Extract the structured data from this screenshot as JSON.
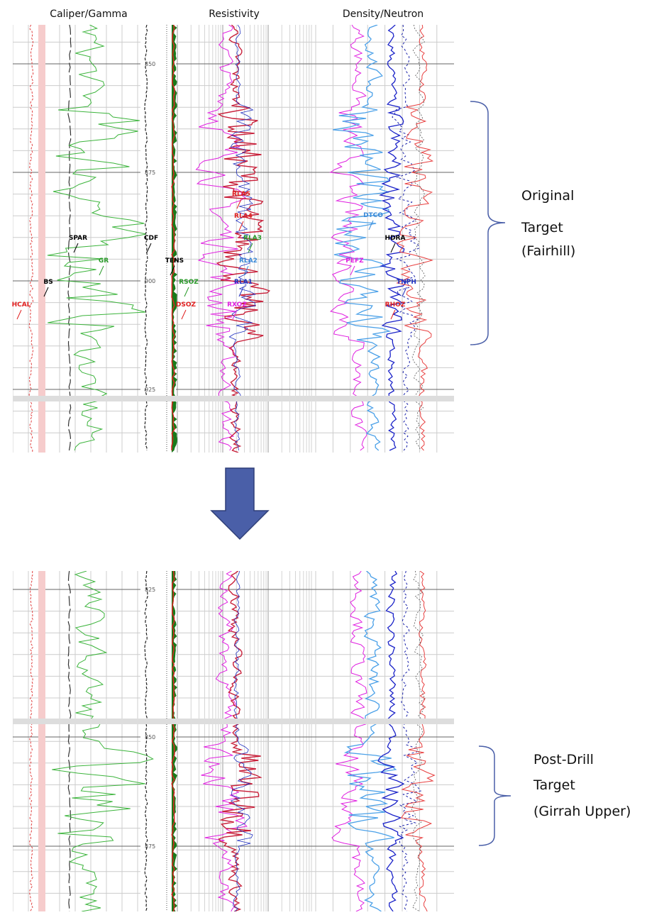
{
  "tracks": [
    "Caliper/Gamma",
    "Resistivity",
    "Density/Neutron"
  ],
  "top_log": {
    "depth_labels": [
      "850",
      "875",
      "900",
      "925"
    ]
  },
  "bottom_log": {
    "depth_labels": [
      "825",
      "850",
      "875"
    ]
  },
  "curve_labels": [
    "BS",
    "HCAL",
    "SPAR",
    "GR",
    "CDF",
    "TENS",
    "RSOZ",
    "DSOZ",
    "RLA5",
    "RLA4",
    "RLA3",
    "RLA2",
    "RLA1",
    "RXOZ",
    "DTCO",
    "HDRA",
    "PEFZ",
    "TNPH",
    "RHOZ"
  ],
  "annotations": [
    {
      "lines": [
        "Original",
        "Target",
        "(Fairhill)"
      ]
    },
    {
      "lines": [
        "Post-Drill",
        "Target",
        "(Girrah Upper)"
      ]
    }
  ]
}
